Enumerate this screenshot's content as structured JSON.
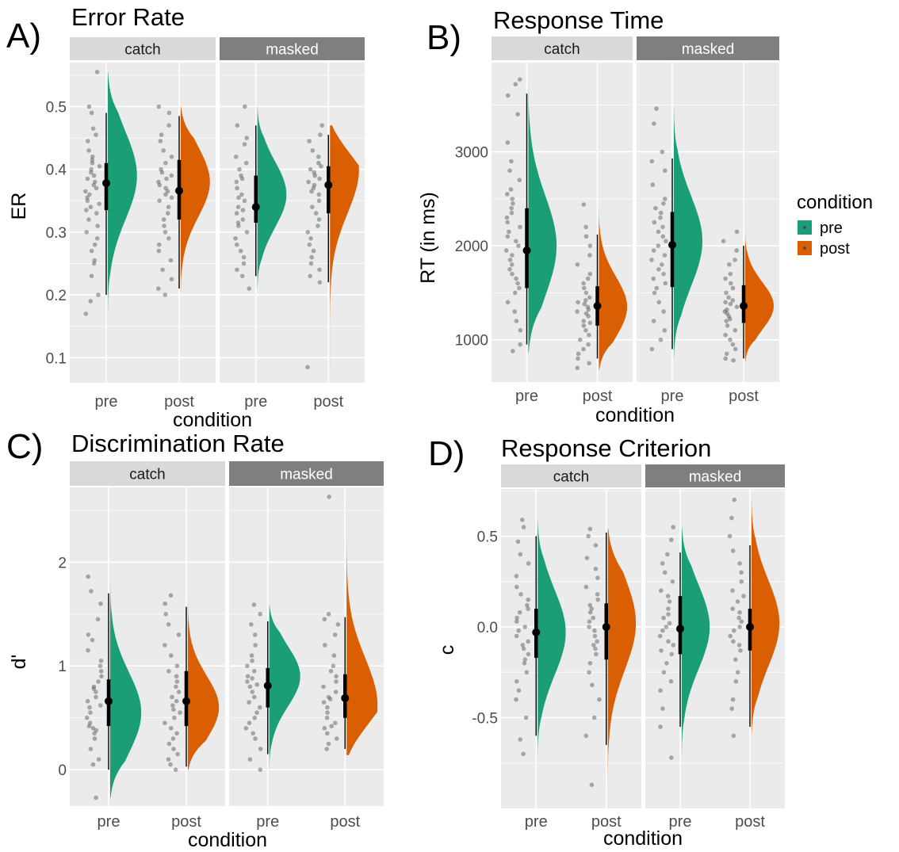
{
  "colors": {
    "pre": "#1b9e77",
    "post": "#d95f02",
    "panel_bg": "#ebebeb",
    "grid": "#ffffff",
    "strip_catch": "#d9d9d9",
    "strip_masked": "#7f7f7f",
    "points": "#4d4d4d"
  },
  "legend": {
    "title": "condition",
    "items": [
      {
        "key": "pre",
        "label": "pre"
      },
      {
        "key": "post",
        "label": "post"
      }
    ]
  },
  "chart_data": [
    {
      "type": "raincloud",
      "panel_letter": "A)",
      "title": "Error Rate",
      "xlabel": "condition",
      "ylabel": "ER",
      "facets": [
        "catch",
        "masked"
      ],
      "categories": [
        "pre",
        "post"
      ],
      "ylim": [
        0.06,
        0.57
      ],
      "yticks": [
        0.1,
        0.2,
        0.3,
        0.4,
        0.5
      ],
      "ytick_labels": [
        "0.1",
        "0.2",
        "0.3",
        "0.4",
        "0.5"
      ],
      "groups": [
        {
          "facet": "catch",
          "category": "pre",
          "min": 0.17,
          "max": 0.555,
          "mode": 0.39,
          "median": 0.378,
          "q1": 0.335,
          "q3": 0.41,
          "wlo": 0.2,
          "whi": 0.49,
          "points": [
            0.555,
            0.5,
            0.49,
            0.465,
            0.455,
            0.445,
            0.43,
            0.42,
            0.415,
            0.41,
            0.405,
            0.4,
            0.395,
            0.39,
            0.385,
            0.38,
            0.375,
            0.37,
            0.365,
            0.36,
            0.355,
            0.35,
            0.345,
            0.34,
            0.335,
            0.33,
            0.32,
            0.31,
            0.3,
            0.29,
            0.28,
            0.27,
            0.255,
            0.25,
            0.23,
            0.2,
            0.19,
            0.17
          ]
        },
        {
          "facet": "catch",
          "category": "post",
          "min": 0.195,
          "max": 0.5,
          "mode": 0.38,
          "median": 0.366,
          "q1": 0.32,
          "q3": 0.415,
          "wlo": 0.21,
          "whi": 0.485,
          "points": [
            0.5,
            0.49,
            0.47,
            0.455,
            0.445,
            0.43,
            0.42,
            0.41,
            0.4,
            0.395,
            0.39,
            0.385,
            0.38,
            0.375,
            0.37,
            0.365,
            0.36,
            0.355,
            0.35,
            0.34,
            0.33,
            0.32,
            0.31,
            0.3,
            0.29,
            0.28,
            0.27,
            0.255,
            0.24,
            0.225,
            0.21,
            0.2
          ]
        },
        {
          "facet": "masked",
          "category": "pre",
          "min": 0.21,
          "max": 0.5,
          "mode": 0.36,
          "median": 0.34,
          "q1": 0.315,
          "q3": 0.39,
          "wlo": 0.23,
          "whi": 0.47,
          "points": [
            0.5,
            0.47,
            0.45,
            0.44,
            0.42,
            0.41,
            0.4,
            0.39,
            0.385,
            0.38,
            0.37,
            0.36,
            0.355,
            0.35,
            0.34,
            0.335,
            0.33,
            0.32,
            0.315,
            0.31,
            0.3,
            0.29,
            0.28,
            0.27,
            0.26,
            0.25,
            0.24,
            0.23,
            0.21
          ]
        },
        {
          "facet": "masked",
          "category": "post",
          "min": 0.085,
          "max": 0.47,
          "mode": 0.4,
          "median": 0.375,
          "q1": 0.33,
          "q3": 0.405,
          "wlo": 0.22,
          "whi": 0.455,
          "points": [
            0.47,
            0.455,
            0.445,
            0.43,
            0.42,
            0.41,
            0.405,
            0.4,
            0.395,
            0.39,
            0.385,
            0.38,
            0.375,
            0.37,
            0.365,
            0.36,
            0.35,
            0.34,
            0.33,
            0.32,
            0.31,
            0.3,
            0.29,
            0.28,
            0.27,
            0.26,
            0.25,
            0.24,
            0.23,
            0.22,
            0.085
          ]
        }
      ]
    },
    {
      "type": "raincloud",
      "panel_letter": "B)",
      "title": "Response Time",
      "xlabel": "condition",
      "ylabel": "RT (in ms)",
      "facets": [
        "catch",
        "masked"
      ],
      "categories": [
        "pre",
        "post"
      ],
      "ylim": [
        550,
        3950
      ],
      "yticks": [
        1000,
        2000,
        3000
      ],
      "ytick_labels": [
        "1000",
        "2000",
        "3000"
      ],
      "groups": [
        {
          "facet": "catch",
          "category": "pre",
          "min": 860,
          "max": 3770,
          "mode": 2000,
          "median": 1950,
          "q1": 1550,
          "q3": 2400,
          "wlo": 950,
          "whi": 3620,
          "points": [
            3770,
            3720,
            3600,
            3400,
            3100,
            2900,
            2800,
            2700,
            2600,
            2550,
            2500,
            2450,
            2400,
            2350,
            2300,
            2250,
            2200,
            2150,
            2100,
            2050,
            2000,
            1950,
            1900,
            1850,
            1800,
            1750,
            1700,
            1650,
            1600,
            1550,
            1500,
            1400,
            1300,
            1200,
            1100,
            950,
            880
          ]
        },
        {
          "facet": "catch",
          "category": "post",
          "min": 680,
          "max": 2440,
          "mode": 1350,
          "median": 1360,
          "q1": 1150,
          "q3": 1570,
          "wlo": 800,
          "whi": 2120,
          "points": [
            2440,
            2200,
            2100,
            2000,
            1900,
            1800,
            1700,
            1650,
            1600,
            1550,
            1500,
            1450,
            1420,
            1400,
            1380,
            1350,
            1320,
            1300,
            1280,
            1250,
            1200,
            1180,
            1150,
            1100,
            1050,
            1000,
            950,
            900,
            850,
            800,
            750,
            700
          ]
        },
        {
          "facet": "masked",
          "category": "pre",
          "min": 820,
          "max": 3460,
          "mode": 2050,
          "median": 2010,
          "q1": 1560,
          "q3": 2360,
          "wlo": 900,
          "whi": 2930,
          "points": [
            3460,
            3300,
            3000,
            2900,
            2800,
            2650,
            2500,
            2450,
            2400,
            2350,
            2300,
            2250,
            2200,
            2150,
            2100,
            2050,
            2000,
            1950,
            1900,
            1850,
            1800,
            1750,
            1700,
            1650,
            1600,
            1550,
            1500,
            1400,
            1300,
            1200,
            1100,
            1000,
            900
          ]
        },
        {
          "facet": "masked",
          "category": "post",
          "min": 770,
          "max": 2150,
          "mode": 1360,
          "median": 1360,
          "q1": 1180,
          "q3": 1580,
          "wlo": 800,
          "whi": 2000,
          "points": [
            2150,
            2050,
            1950,
            1850,
            1800,
            1700,
            1650,
            1600,
            1550,
            1500,
            1450,
            1420,
            1400,
            1380,
            1350,
            1320,
            1300,
            1280,
            1250,
            1220,
            1200,
            1150,
            1100,
            1050,
            1000,
            950,
            900,
            850,
            800,
            780
          ]
        }
      ]
    },
    {
      "type": "raincloud",
      "panel_letter": "C)",
      "title": "Discrimination Rate",
      "xlabel": "condition",
      "ylabel": "d'",
      "facets": [
        "catch",
        "masked"
      ],
      "categories": [
        "pre",
        "post"
      ],
      "ylim": [
        -0.35,
        2.72
      ],
      "yticks": [
        0,
        1,
        2
      ],
      "ytick_labels": [
        "0",
        "1",
        "2"
      ],
      "groups": [
        {
          "facet": "catch",
          "category": "pre",
          "min": -0.27,
          "max": 1.86,
          "mode": 0.55,
          "median": 0.66,
          "q1": 0.42,
          "q3": 0.87,
          "wlo": 0.0,
          "whi": 1.7,
          "points": [
            1.86,
            1.72,
            1.6,
            1.45,
            1.3,
            1.25,
            1.15,
            1.05,
            1.0,
            0.95,
            0.9,
            0.85,
            0.8,
            0.78,
            0.75,
            0.7,
            0.66,
            0.62,
            0.6,
            0.55,
            0.5,
            0.45,
            0.42,
            0.4,
            0.38,
            0.35,
            0.3,
            0.2,
            0.1,
            0.05,
            -0.27
          ]
        },
        {
          "facet": "catch",
          "category": "post",
          "min": 0.0,
          "max": 1.68,
          "mode": 0.6,
          "median": 0.66,
          "q1": 0.42,
          "q3": 0.95,
          "wlo": 0.03,
          "whi": 1.57,
          "points": [
            1.68,
            1.6,
            1.5,
            1.4,
            1.3,
            1.2,
            1.1,
            1.0,
            0.95,
            0.9,
            0.85,
            0.8,
            0.75,
            0.7,
            0.66,
            0.62,
            0.58,
            0.55,
            0.5,
            0.45,
            0.4,
            0.35,
            0.3,
            0.25,
            0.2,
            0.15,
            0.1,
            0.05,
            0.0
          ]
        },
        {
          "facet": "masked",
          "category": "pre",
          "min": 0.0,
          "max": 1.59,
          "mode": 0.9,
          "median": 0.81,
          "q1": 0.6,
          "q3": 0.98,
          "wlo": 0.15,
          "whi": 1.43,
          "points": [
            1.59,
            1.5,
            1.4,
            1.3,
            1.2,
            1.1,
            1.05,
            1.0,
            0.95,
            0.9,
            0.88,
            0.85,
            0.82,
            0.8,
            0.75,
            0.7,
            0.65,
            0.6,
            0.55,
            0.5,
            0.45,
            0.4,
            0.35,
            0.3,
            0.2,
            0.1,
            0.0
          ]
        },
        {
          "facet": "masked",
          "category": "post",
          "min": 0.14,
          "max": 2.63,
          "mode": 0.62,
          "median": 0.69,
          "q1": 0.5,
          "q3": 0.92,
          "wlo": 0.2,
          "whi": 1.47,
          "points": [
            2.63,
            1.5,
            1.45,
            1.4,
            1.3,
            1.2,
            1.1,
            1.0,
            0.95,
            0.9,
            0.85,
            0.8,
            0.75,
            0.7,
            0.68,
            0.65,
            0.6,
            0.55,
            0.5,
            0.45,
            0.42,
            0.4,
            0.35,
            0.3,
            0.25,
            0.2
          ]
        }
      ]
    },
    {
      "type": "raincloud",
      "panel_letter": "D)",
      "title": "Response Criterion",
      "xlabel": "condition",
      "ylabel": "c",
      "facets": [
        "catch",
        "masked"
      ],
      "categories": [
        "pre",
        "post"
      ],
      "ylim": [
        -1.0,
        0.76
      ],
      "yticks": [
        -0.5,
        0.0,
        0.5
      ],
      "ytick_labels": [
        "-0.5",
        "0.0",
        "0.5"
      ],
      "groups": [
        {
          "facet": "catch",
          "category": "pre",
          "min": -0.7,
          "max": 0.59,
          "mode": -0.03,
          "median": -0.03,
          "q1": -0.17,
          "q3": 0.1,
          "wlo": -0.6,
          "whi": 0.5,
          "points": [
            0.59,
            0.55,
            0.47,
            0.4,
            0.35,
            0.28,
            0.22,
            0.18,
            0.15,
            0.12,
            0.1,
            0.08,
            0.05,
            0.03,
            0.0,
            -0.02,
            -0.05,
            -0.08,
            -0.1,
            -0.12,
            -0.15,
            -0.18,
            -0.2,
            -0.25,
            -0.3,
            -0.35,
            -0.4,
            -0.5,
            -0.62,
            -0.7
          ]
        },
        {
          "facet": "catch",
          "category": "post",
          "min": -0.87,
          "max": 0.54,
          "mode": 0.02,
          "median": 0.0,
          "q1": -0.18,
          "q3": 0.13,
          "wlo": -0.65,
          "whi": 0.52,
          "points": [
            0.54,
            0.5,
            0.45,
            0.38,
            0.32,
            0.27,
            0.22,
            0.18,
            0.15,
            0.12,
            0.1,
            0.08,
            0.05,
            0.03,
            0.0,
            -0.02,
            -0.05,
            -0.08,
            -0.1,
            -0.12,
            -0.15,
            -0.2,
            -0.25,
            -0.32,
            -0.4,
            -0.5,
            -0.6,
            -0.87
          ]
        },
        {
          "facet": "masked",
          "category": "pre",
          "min": -0.72,
          "max": 0.55,
          "mode": 0.0,
          "median": -0.01,
          "q1": -0.15,
          "q3": 0.17,
          "wlo": -0.55,
          "whi": 0.41,
          "points": [
            0.55,
            0.48,
            0.4,
            0.35,
            0.3,
            0.25,
            0.2,
            0.17,
            0.14,
            0.1,
            0.07,
            0.05,
            0.02,
            0.0,
            -0.02,
            -0.05,
            -0.08,
            -0.1,
            -0.13,
            -0.15,
            -0.2,
            -0.25,
            -0.3,
            -0.35,
            -0.45,
            -0.55,
            -0.72
          ]
        },
        {
          "facet": "masked",
          "category": "post",
          "min": -0.6,
          "max": 0.7,
          "mode": 0.02,
          "median": 0.0,
          "q1": -0.13,
          "q3": 0.1,
          "wlo": -0.55,
          "whi": 0.45,
          "points": [
            0.7,
            0.6,
            0.5,
            0.42,
            0.35,
            0.3,
            0.25,
            0.2,
            0.17,
            0.14,
            0.1,
            0.08,
            0.05,
            0.03,
            0.0,
            -0.02,
            -0.05,
            -0.08,
            -0.1,
            -0.13,
            -0.18,
            -0.25,
            -0.3,
            -0.4,
            -0.45,
            -0.6
          ]
        }
      ]
    }
  ]
}
